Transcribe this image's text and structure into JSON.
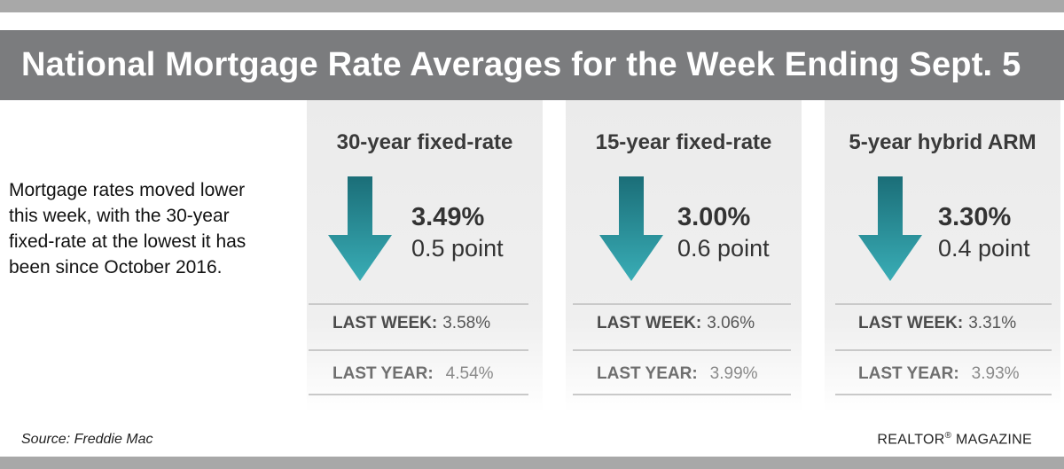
{
  "title": "National Mortgage Rate Averages for the Week Ending Sept. 5",
  "intro": "Mortgage rates moved lower this week, with the 30-year fixed-rate at the lowest it has been since October 2016.",
  "columns": [
    {
      "title": "30-year fixed-rate",
      "rate": "3.49%",
      "change": "0.5 point",
      "last_week_label": "LAST WEEK:",
      "last_week_value": "3.58%",
      "last_year_label": "LAST YEAR:",
      "last_year_value": "4.54%"
    },
    {
      "title": "15-year fixed-rate",
      "rate": "3.00%",
      "change": "0.6 point",
      "last_week_label": "LAST WEEK:",
      "last_week_value": "3.06%",
      "last_year_label": "LAST YEAR:",
      "last_year_value": "3.99%"
    },
    {
      "title": "5-year hybrid ARM",
      "rate": "3.30%",
      "change": "0.4 point",
      "last_week_label": "LAST WEEK:",
      "last_week_value": "3.31%",
      "last_year_label": "LAST YEAR:",
      "last_year_value": "3.93%"
    }
  ],
  "footer": {
    "source": "Source: Freddie Mac",
    "brand": "REALTOR",
    "brand_mark": "®",
    "brand_suffix": "MAGAZINE"
  },
  "colors": {
    "banner": "#7b7c7e",
    "arrow_top": "#1b6e78",
    "arrow_bottom": "#39adb6",
    "panel": "#ebebeb"
  },
  "icons": {
    "down_arrow": "down-arrow-icon"
  }
}
